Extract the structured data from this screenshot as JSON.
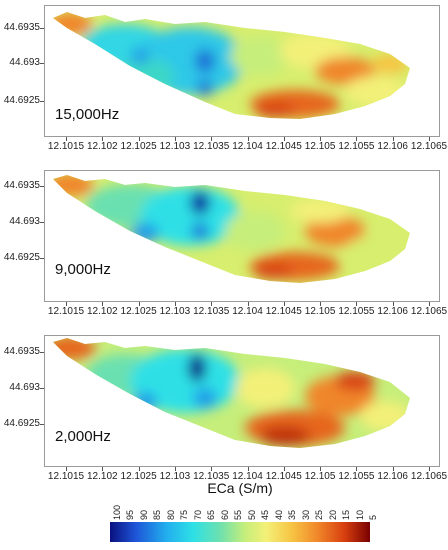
{
  "panels": [
    {
      "freq_label": "15,000Hz",
      "variant": 0
    },
    {
      "freq_label": "9,000Hz",
      "variant": 1
    },
    {
      "freq_label": "2,000Hz",
      "variant": 2
    }
  ],
  "axes": {
    "y_ticks": [
      "44.6935",
      "44.693",
      "44.6925"
    ],
    "x_ticks": [
      "12.1015",
      "12.102",
      "12.1025",
      "12.103",
      "12.1035",
      "12.104",
      "12.1045",
      "12.105",
      "12.1055",
      "12.106",
      "12.1065"
    ]
  },
  "legend": {
    "title": "ECa (S/m)",
    "ticks": [
      "100",
      "95",
      "90",
      "85",
      "80",
      "75",
      "70",
      "65",
      "60",
      "55",
      "50",
      "45",
      "40",
      "35",
      "30",
      "25",
      "20",
      "15",
      "10",
      "5"
    ],
    "colors": [
      "#0a1080",
      "#1e56d8",
      "#22b0ee",
      "#2ee0e6",
      "#6be0b0",
      "#c6ee7a",
      "#f3f078",
      "#f7c443",
      "#f0862a",
      "#d8400f",
      "#7a0000"
    ]
  }
}
